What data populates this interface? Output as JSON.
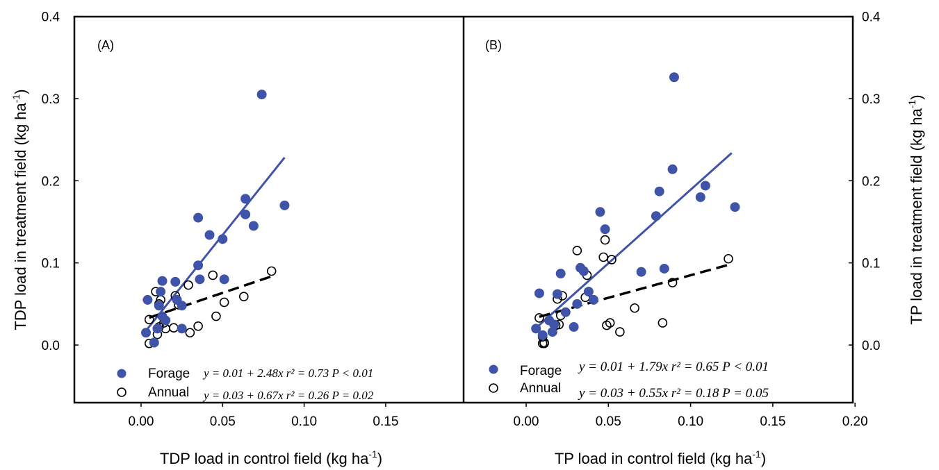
{
  "chart_data": [
    {
      "type": "scatter",
      "panel_label": "(A)",
      "xlabel": "TDP load in control field (kg ha",
      "xlabel_unit_exp": "-1",
      "xlabel_close": ")",
      "ylabel": "TDP load in treatment field (kg ha",
      "ylabel_unit_exp": "-1",
      "ylabel_close": ")",
      "xlim": [
        -0.04,
        0.2
      ],
      "ylim": [
        -0.07,
        0.4
      ],
      "xticks": [
        "0.00",
        "0.05",
        "0.10",
        "0.15"
      ],
      "xtick_values": [
        0,
        0.05,
        0.1,
        0.15
      ],
      "yticks": [
        "0.0",
        "0.1",
        "0.2",
        "0.3",
        "0.4"
      ],
      "ytick_values": [
        0,
        0.1,
        0.2,
        0.3,
        0.4
      ],
      "series": [
        {
          "name": "Forage",
          "color": "#3f54a8",
          "marker": "filled-circle",
          "equation": "y = 0.01 + 2.48x  r² = 0.73  P < 0.01",
          "regression": {
            "x0": 0.003,
            "x1": 0.088,
            "intercept": 0.01,
            "slope": 2.48
          },
          "points": [
            [
              0.003,
              0.015
            ],
            [
              0.004,
              0.055
            ],
            [
              0.008,
              0.003
            ],
            [
              0.01,
              0.02
            ],
            [
              0.011,
              0.048
            ],
            [
              0.012,
              0.065
            ],
            [
              0.013,
              0.078
            ],
            [
              0.013,
              0.035
            ],
            [
              0.015,
              0.03
            ],
            [
              0.021,
              0.077
            ],
            [
              0.022,
              0.055
            ],
            [
              0.025,
              0.048
            ],
            [
              0.025,
              0.02
            ],
            [
              0.035,
              0.155
            ],
            [
              0.035,
              0.097
            ],
            [
              0.036,
              0.08
            ],
            [
              0.042,
              0.134
            ],
            [
              0.05,
              0.129
            ],
            [
              0.051,
              0.08
            ],
            [
              0.064,
              0.178
            ],
            [
              0.064,
              0.159
            ],
            [
              0.069,
              0.145
            ],
            [
              0.074,
              0.305
            ],
            [
              0.088,
              0.17
            ]
          ]
        },
        {
          "name": "Annual",
          "color": "#000000",
          "marker": "open-circle",
          "equation": "y = 0.03 + 0.67x  r² = 0.26  P = 0.02",
          "regression": {
            "x0": 0.005,
            "x1": 0.08,
            "intercept": 0.03,
            "slope": 0.67
          },
          "points": [
            [
              0.005,
              0.031
            ],
            [
              0.005,
              0.002
            ],
            [
              0.008,
              0.003
            ],
            [
              0.009,
              0.065
            ],
            [
              0.01,
              0.013
            ],
            [
              0.011,
              0.022
            ],
            [
              0.011,
              0.05
            ],
            [
              0.012,
              0.055
            ],
            [
              0.013,
              0.078
            ],
            [
              0.014,
              0.027
            ],
            [
              0.015,
              0.02
            ],
            [
              0.02,
              0.021
            ],
            [
              0.021,
              0.06
            ],
            [
              0.023,
              0.049
            ],
            [
              0.029,
              0.073
            ],
            [
              0.03,
              0.015
            ],
            [
              0.035,
              0.023
            ],
            [
              0.044,
              0.085
            ],
            [
              0.046,
              0.035
            ],
            [
              0.051,
              0.052
            ],
            [
              0.063,
              0.059
            ],
            [
              0.08,
              0.09
            ]
          ]
        }
      ]
    },
    {
      "type": "scatter",
      "panel_label": "(B)",
      "xlabel": "TP load in control field (kg ha",
      "xlabel_unit_exp": "-1",
      "xlabel_close": ")",
      "ylabel": "TP load in treatment field (kg ha",
      "ylabel_unit_exp": "-1",
      "ylabel_close": ")",
      "xlim": [
        -0.04,
        0.2
      ],
      "ylim": [
        -0.07,
        0.4
      ],
      "xticks": [
        "0.00",
        "0.05",
        "0.10",
        "0.15",
        "0.20"
      ],
      "xtick_values": [
        0,
        0.05,
        0.1,
        0.15,
        0.2
      ],
      "yticks": [
        "0.0",
        "0.1",
        "0.2",
        "0.3",
        "0.4"
      ],
      "ytick_values": [
        0,
        0.1,
        0.2,
        0.3,
        0.4
      ],
      "series": [
        {
          "name": "Forage",
          "color": "#3f54a8",
          "marker": "filled-circle",
          "equation": "y = 0.01 + 1.79x  r² = 0.65  P < 0.01",
          "regression": {
            "x0": 0.008,
            "x1": 0.125,
            "intercept": 0.01,
            "slope": 1.79
          },
          "points": [
            [
              0.006,
              0.02
            ],
            [
              0.008,
              0.063
            ],
            [
              0.01,
              0.012
            ],
            [
              0.014,
              0.03
            ],
            [
              0.016,
              0.016
            ],
            [
              0.017,
              0.025
            ],
            [
              0.019,
              0.062
            ],
            [
              0.021,
              0.087
            ],
            [
              0.024,
              0.04
            ],
            [
              0.029,
              0.022
            ],
            [
              0.031,
              0.05
            ],
            [
              0.033,
              0.094
            ],
            [
              0.035,
              0.09
            ],
            [
              0.038,
              0.065
            ],
            [
              0.041,
              0.055
            ],
            [
              0.045,
              0.162
            ],
            [
              0.048,
              0.141
            ],
            [
              0.07,
              0.089
            ],
            [
              0.079,
              0.157
            ],
            [
              0.081,
              0.187
            ],
            [
              0.084,
              0.093
            ],
            [
              0.089,
              0.214
            ],
            [
              0.09,
              0.326
            ],
            [
              0.106,
              0.18
            ],
            [
              0.109,
              0.194
            ],
            [
              0.127,
              0.168
            ]
          ]
        },
        {
          "name": "Annual",
          "color": "#000000",
          "marker": "open-circle",
          "equation": "y = 0.03 + 0.55x  r² = 0.18  P = 0.05",
          "regression": {
            "x0": 0.008,
            "x1": 0.123,
            "intercept": 0.03,
            "slope": 0.55
          },
          "points": [
            [
              0.008,
              0.033
            ],
            [
              0.01,
              0.01
            ],
            [
              0.01,
              0.002
            ],
            [
              0.011,
              0.002
            ],
            [
              0.011,
              0.003
            ],
            [
              0.018,
              0.024
            ],
            [
              0.019,
              0.056
            ],
            [
              0.02,
              0.025
            ],
            [
              0.021,
              0.036
            ],
            [
              0.022,
              0.06
            ],
            [
              0.031,
              0.115
            ],
            [
              0.036,
              0.058
            ],
            [
              0.037,
              0.085
            ],
            [
              0.047,
              0.107
            ],
            [
              0.048,
              0.128
            ],
            [
              0.049,
              0.024
            ],
            [
              0.051,
              0.027
            ],
            [
              0.052,
              0.104
            ],
            [
              0.057,
              0.016
            ],
            [
              0.066,
              0.045
            ],
            [
              0.083,
              0.027
            ],
            [
              0.089,
              0.076
            ],
            [
              0.123,
              0.105
            ]
          ]
        }
      ]
    }
  ]
}
